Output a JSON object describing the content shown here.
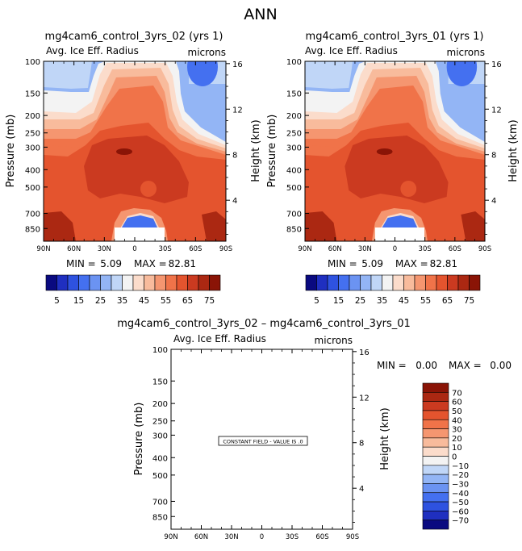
{
  "season": "ANN",
  "panels": [
    {
      "title": "mg4cam6_control_3yrs_02 (yrs 1)",
      "variable": "Avg. Ice Eff. Radius",
      "units": "microns",
      "min_label": "MIN =",
      "min_value": "5.09",
      "max_label": "MAX =",
      "max_value": "82.81"
    },
    {
      "title": "mg4cam6_control_3yrs_01 (yrs 1)",
      "variable": "Avg. Ice Eff. Radius",
      "units": "microns",
      "min_label": "MIN =",
      "min_value": "5.09",
      "max_label": "MAX =",
      "max_value": "82.81"
    }
  ],
  "diff_panel": {
    "title": "mg4cam6_control_3yrs_02 – mg4cam6_control_3yrs_01",
    "variable": "Avg. Ice Eff. Radius",
    "units": "microns",
    "min_label": "MIN =",
    "min_value": "0.00",
    "max_label": "MAX =",
    "max_value": "0.00",
    "constant_field_label": "CONSTANT FIELD - VALUE IS .0"
  },
  "chart_data": [
    {
      "type": "heatmap",
      "title": "mg4cam6_control_3yrs_02 (yrs 1)",
      "xlabel": "",
      "ylabel": "Pressure (mb)",
      "y2label": "Height (km)",
      "x_ticks": [
        "90N",
        "60N",
        "30N",
        "0",
        "30S",
        "60S",
        "90S"
      ],
      "x_values": [
        90,
        60,
        30,
        0,
        -30,
        -60,
        -90
      ],
      "y_ticks": [
        "100",
        "150",
        "200",
        "250",
        "300",
        "400",
        "500",
        "700",
        "850"
      ],
      "y_values": [
        100,
        150,
        200,
        250,
        300,
        400,
        500,
        700,
        850
      ],
      "y2_ticks": [
        "4",
        "8",
        "12",
        "16"
      ],
      "y2_values": [
        4,
        8,
        12,
        16
      ],
      "ylim": [
        100,
        1000
      ],
      "min": 5.09,
      "max": 82.81
    },
    {
      "type": "heatmap",
      "title": "mg4cam6_control_3yrs_01 (yrs 1)",
      "xlabel": "",
      "ylabel": "Pressure (mb)",
      "y2label": "Height (km)",
      "x_ticks": [
        "90N",
        "60N",
        "30N",
        "0",
        "30S",
        "60S",
        "90S"
      ],
      "x_values": [
        90,
        60,
        30,
        0,
        -30,
        -60,
        -90
      ],
      "y_ticks": [
        "100",
        "150",
        "200",
        "250",
        "300",
        "400",
        "500",
        "700",
        "850"
      ],
      "y_values": [
        100,
        150,
        200,
        250,
        300,
        400,
        500,
        700,
        850
      ],
      "y2_ticks": [
        "4",
        "8",
        "12",
        "16"
      ],
      "y2_values": [
        4,
        8,
        12,
        16
      ],
      "ylim": [
        100,
        1000
      ],
      "min": 5.09,
      "max": 82.81
    },
    {
      "type": "heatmap",
      "title": "mg4cam6_control_3yrs_02 – mg4cam6_control_3yrs_01",
      "xlabel": "",
      "ylabel": "Pressure (mb)",
      "y2label": "Height (km)",
      "x_ticks": [
        "90N",
        "60N",
        "30N",
        "0",
        "30S",
        "60S",
        "90S"
      ],
      "x_values": [
        90,
        60,
        30,
        0,
        -30,
        -60,
        -90
      ],
      "y_ticks": [
        "100",
        "150",
        "200",
        "250",
        "300",
        "400",
        "500",
        "700",
        "850"
      ],
      "y_values": [
        100,
        150,
        200,
        250,
        300,
        400,
        500,
        700,
        850
      ],
      "y2_ticks": [
        "4",
        "8",
        "12",
        "16"
      ],
      "y2_values": [
        4,
        8,
        12,
        16
      ],
      "ylim": [
        100,
        1000
      ],
      "min": 0.0,
      "max": 0.0,
      "constant_value": 0
    }
  ],
  "colorbar_top": {
    "colors": [
      "#0a0a80",
      "#1f2fc0",
      "#2e52e0",
      "#4470f0",
      "#6b93f2",
      "#93b5f5",
      "#c0d6f7",
      "#f3f3f3",
      "#fbdccb",
      "#f8bb9c",
      "#f59670",
      "#f07349",
      "#e4542e",
      "#cb3a20",
      "#ab2812",
      "#8a1406"
    ],
    "tick_labels": [
      "5",
      "15",
      "25",
      "35",
      "45",
      "55",
      "65",
      "75"
    ],
    "tick_values": [
      5,
      15,
      25,
      35,
      45,
      55,
      65,
      75
    ],
    "levels": [
      5,
      10,
      15,
      20,
      25,
      30,
      35,
      40,
      45,
      50,
      55,
      60,
      65,
      70,
      75
    ]
  },
  "colorbar_diff": {
    "colors": [
      "#8a1406",
      "#ab2812",
      "#cb3a20",
      "#e4542e",
      "#f07349",
      "#f59670",
      "#f8bb9c",
      "#fbdccb",
      "#f3f3f3",
      "#c0d6f7",
      "#93b5f5",
      "#6b93f2",
      "#4470f0",
      "#2e52e0",
      "#1f2fc0",
      "#0a0a80"
    ],
    "tick_labels": [
      "70",
      "60",
      "50",
      "40",
      "30",
      "20",
      "10",
      "0",
      "−10",
      "−20",
      "−30",
      "−40",
      "−50",
      "−60",
      "−70"
    ]
  },
  "field_colors": {
    "c1": "#c0d6f7",
    "c2": "#93b5f5",
    "c3": "#6b93f2",
    "c4": "#4470f0",
    "w0": "#f3f3f3",
    "w1": "#fbdccb",
    "w2": "#f8bb9c",
    "w3": "#f59670",
    "w4": "#f07349",
    "w5": "#e4542e",
    "w6": "#cb3a20",
    "w7": "#ab2812",
    "w8": "#8a1406"
  }
}
